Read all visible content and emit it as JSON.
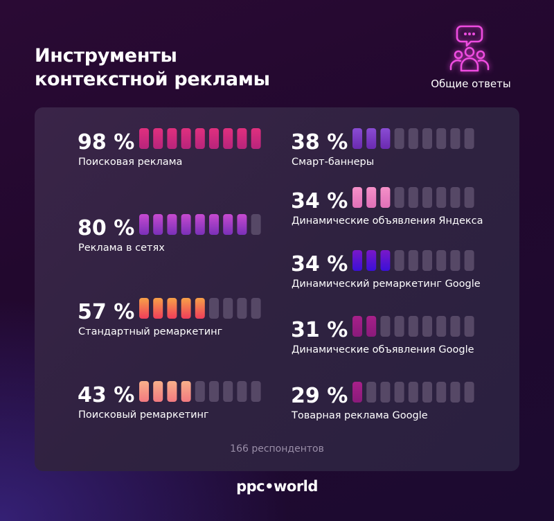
{
  "header": {
    "title_line1": "Инструменты",
    "title_line2": "контекстной рекламы",
    "respondents_label": "Общие ответы",
    "icon": "people-chat-icon"
  },
  "chart_data": {
    "type": "bar",
    "title": "Инструменты контекстной рекламы",
    "unit": "%",
    "segments": 9,
    "categories": [
      "Поисковая реклама",
      "Реклама в сетях",
      "Стандартный ремаркетинг",
      "Поисковый ремаркетинг",
      "Смарт-баннеры",
      "Динамические объявления Яндекса",
      "Динамический ремаркетинг Google",
      "Динамические объявления Google",
      "Товарная реклама Google"
    ],
    "value_labels": [
      "98 %",
      "80 %",
      "57 %",
      "43 %",
      "38 %",
      "34 %",
      "34 %",
      "31 %",
      "29 %"
    ],
    "values": [
      98,
      80,
      57,
      43,
      38,
      34,
      34,
      31,
      29
    ],
    "filled_segments": [
      9,
      8,
      5,
      4,
      3,
      3,
      3,
      2,
      1
    ],
    "colors": [
      [
        "#b8247c",
        "#e0307e"
      ],
      [
        "#7a30b8",
        "#c64ad0"
      ],
      [
        "#ef3d5a",
        "#f7a048"
      ],
      [
        "#f27a80",
        "#f8b08a"
      ],
      [
        "#6a2ab0",
        "#8a4cd4"
      ],
      [
        "#e070b8",
        "#f590c8"
      ],
      [
        "#3a10d8",
        "#7a18c8"
      ],
      [
        "#8a1a7a",
        "#a8208a"
      ],
      [
        "#8a1a7a",
        "#a8208a"
      ]
    ],
    "empty_color": "#564866"
  },
  "footer": {
    "respondents": "166 респондентов",
    "brand": "ppc•world"
  }
}
